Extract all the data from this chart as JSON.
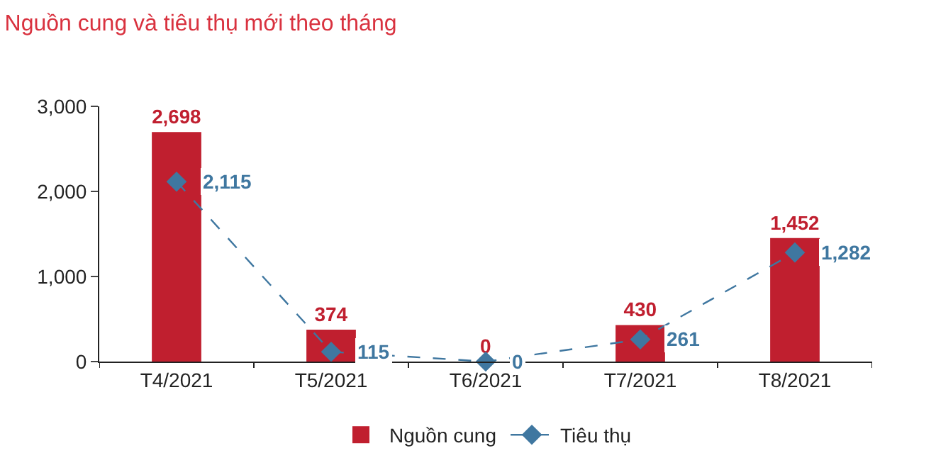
{
  "chart_data": {
    "type": "bar",
    "title": "Nguồn cung và tiêu thụ mới theo tháng",
    "categories": [
      "T4/2021",
      "T5/2021",
      "T6/2021",
      "T7/2021",
      "T8/2021"
    ],
    "series": [
      {
        "name": "Nguồn cung",
        "color": "#c01f2f",
        "values": [
          2698,
          374,
          0,
          430,
          1452
        ],
        "value_labels": [
          "2,698",
          "374",
          "0",
          "430",
          "1,452"
        ]
      },
      {
        "name": "Tiêu thụ",
        "type": "line",
        "color": "#3f77a0",
        "values": [
          2115,
          115,
          0,
          261,
          1282
        ],
        "value_labels": [
          "2,115",
          "115",
          "0",
          "261",
          "1,282"
        ],
        "marker": "diamond",
        "line_style": "dashed"
      }
    ],
    "ylim": [
      0,
      3000
    ],
    "yticks": [
      {
        "value": 0,
        "label": "0"
      },
      {
        "value": 1000,
        "label": "1,000"
      },
      {
        "value": 2000,
        "label": "2,000"
      },
      {
        "value": 3000,
        "label": "3,000"
      }
    ],
    "grid": false,
    "legend": "bottom"
  }
}
